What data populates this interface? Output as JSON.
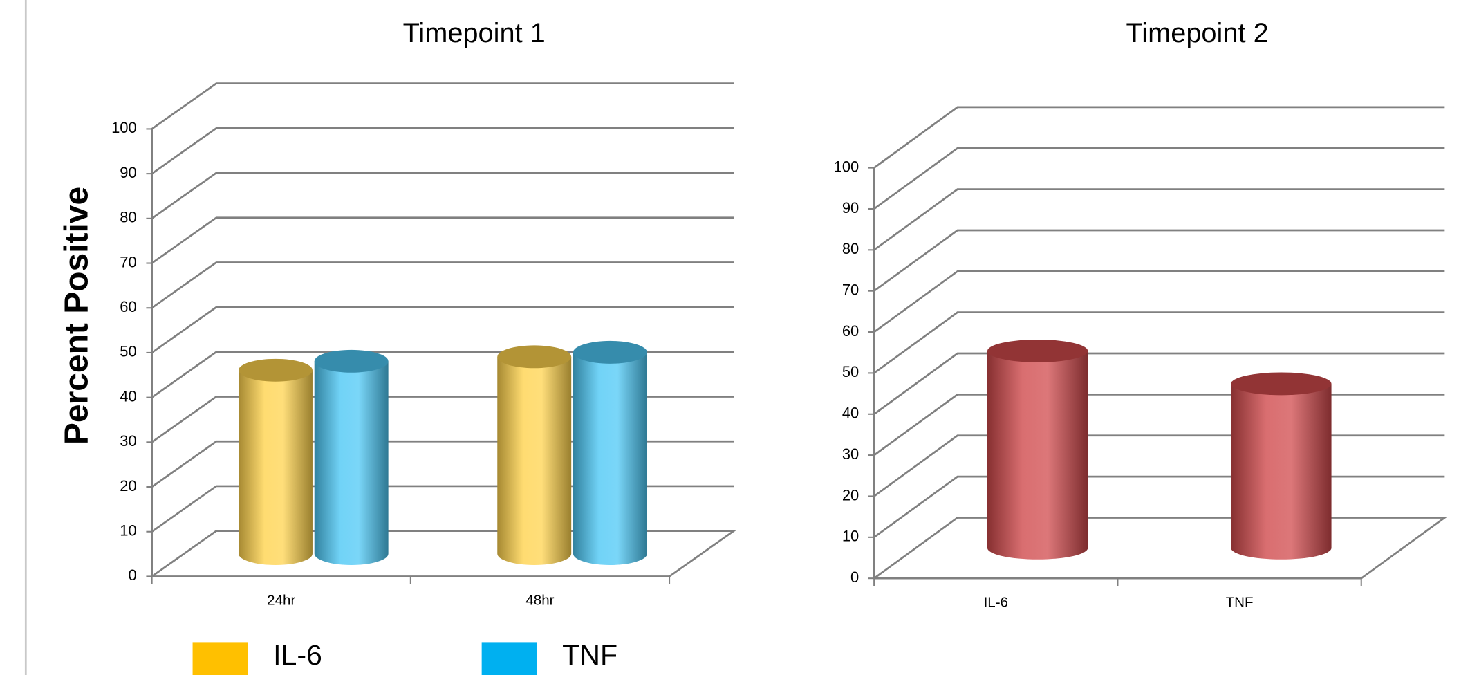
{
  "chart_data": [
    {
      "type": "bar",
      "title": "Timepoint 1",
      "y_label": "Percent Positive",
      "categories": [
        "24hr",
        "48hr"
      ],
      "series": [
        {
          "name": "IL-6",
          "color": "#ffc000",
          "values": [
            41,
            44
          ]
        },
        {
          "name": "TNF",
          "color": "#00b0f0",
          "values": [
            43,
            45
          ]
        }
      ],
      "ylim": [
        0,
        100
      ],
      "yticks": [
        0,
        10,
        20,
        30,
        40,
        50,
        60,
        70,
        80,
        90,
        100
      ],
      "grid": true,
      "legend": "bottom"
    },
    {
      "type": "bar",
      "title": "Timepoint 2",
      "categories": [
        "IL-6",
        "TNF"
      ],
      "values": [
        48,
        40
      ],
      "color": "#d04a4c",
      "ylim": [
        0,
        100
      ],
      "yticks": [
        0,
        10,
        20,
        30,
        40,
        50,
        60,
        70,
        80,
        90,
        100
      ],
      "grid": true
    }
  ]
}
